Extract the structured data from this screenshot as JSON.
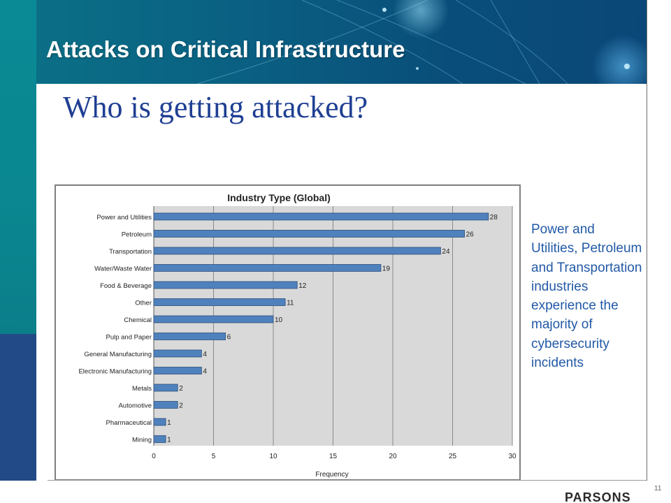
{
  "slide": {
    "title": "Attacks on Critical Infrastructure",
    "subtitle": "Who is getting attacked?",
    "side_note": "Power and Utilities, Petroleum and Transportation industries experience the majority of cybersecurity incidents",
    "page_number": "11",
    "footer_logo_text": "PARSONS"
  },
  "colors": {
    "bar_fill": "#4f81bd",
    "bar_stroke": "#2e4f7a",
    "plot_bg": "#d9d9d9",
    "subtitle_color": "#1f3f93",
    "side_note_color": "#2259a6"
  },
  "chart_data": {
    "type": "bar",
    "orientation": "horizontal",
    "title": "Industry Type (Global)",
    "xlabel": "Frequency",
    "ylabel": "",
    "xlim": [
      0,
      30
    ],
    "xticks": [
      0,
      5,
      10,
      15,
      20,
      25,
      30
    ],
    "grid": true,
    "categories": [
      "Power and Utilities",
      "Petroleum",
      "Transportation",
      "Water/Waste Water",
      "Food & Beverage",
      "Other",
      "Chemical",
      "Pulp and Paper",
      "General Manufacturing",
      "Electronic Manufacturing",
      "Metals",
      "Automotive",
      "Pharmaceutical",
      "Mining"
    ],
    "values": [
      28,
      26,
      24,
      19,
      12,
      11,
      10,
      6,
      4,
      4,
      2,
      2,
      1,
      1
    ]
  }
}
